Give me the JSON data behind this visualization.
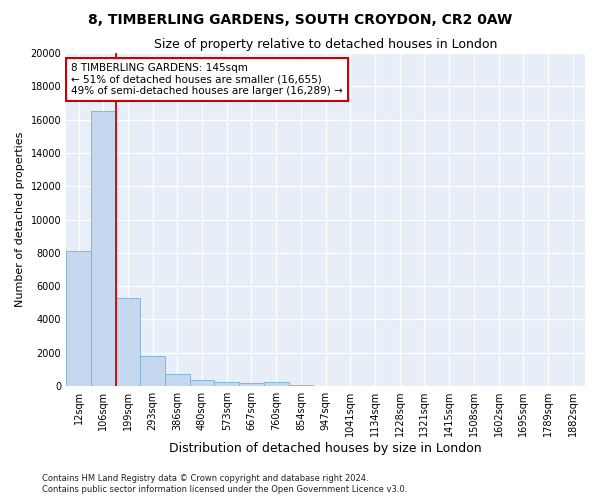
{
  "title_line1": "8, TIMBERLING GARDENS, SOUTH CROYDON, CR2 0AW",
  "title_line2": "Size of property relative to detached houses in London",
  "xlabel": "Distribution of detached houses by size in London",
  "ylabel": "Number of detached properties",
  "footnote1": "Contains HM Land Registry data © Crown copyright and database right 2024.",
  "footnote2": "Contains public sector information licensed under the Open Government Licence v3.0.",
  "annotation_line1": "8 TIMBERLING GARDENS: 145sqm",
  "annotation_line2": "← 51% of detached houses are smaller (16,655)",
  "annotation_line3": "49% of semi-detached houses are larger (16,289) →",
  "bar_color": "#c5d8f0",
  "bar_edge_color": "#7aafd4",
  "red_line_color": "#cc0000",
  "background_color": "#e8eef8",
  "categories": [
    "12sqm",
    "106sqm",
    "199sqm",
    "293sqm",
    "386sqm",
    "480sqm",
    "573sqm",
    "667sqm",
    "760sqm",
    "854sqm",
    "947sqm",
    "1041sqm",
    "1134sqm",
    "1228sqm",
    "1321sqm",
    "1415sqm",
    "1508sqm",
    "1602sqm",
    "1695sqm",
    "1789sqm",
    "1882sqm"
  ],
  "values": [
    8100,
    16550,
    5300,
    1800,
    700,
    350,
    270,
    210,
    270,
    90,
    0,
    0,
    0,
    0,
    0,
    0,
    0,
    0,
    0,
    0,
    0
  ],
  "ylim": [
    0,
    20000
  ],
  "yticks": [
    0,
    2000,
    4000,
    6000,
    8000,
    10000,
    12000,
    14000,
    16000,
    18000,
    20000
  ],
  "red_line_x": 1.5,
  "fig_width": 6.0,
  "fig_height": 5.0,
  "title1_fontsize": 10,
  "title2_fontsize": 9,
  "ylabel_fontsize": 8,
  "xlabel_fontsize": 9,
  "tick_fontsize": 7,
  "annot_fontsize": 7.5,
  "footnote_fontsize": 6
}
